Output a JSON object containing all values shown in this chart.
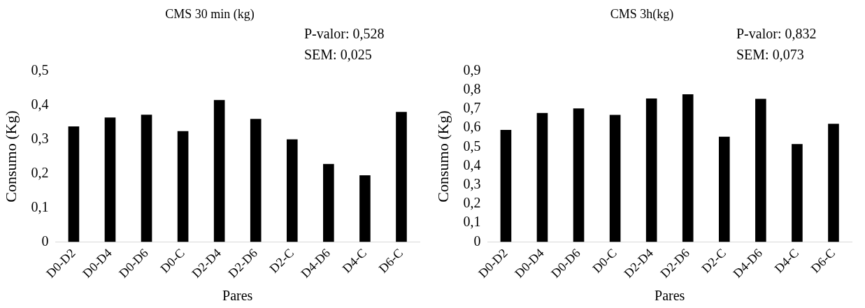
{
  "chart_data": [
    {
      "type": "bar",
      "title": "CMS 30 min (kg)",
      "xlabel": "Pares",
      "ylabel": "Consumo (Kg)",
      "categories": [
        "D0-D2",
        "D0-D4",
        "D0-D6",
        "D0-C",
        "D2-D4",
        "D2-D6",
        "D2-C",
        "D4-D6",
        "D4-C",
        "D6-C"
      ],
      "values": [
        0.338,
        0.364,
        0.372,
        0.324,
        0.415,
        0.36,
        0.3,
        0.228,
        0.195,
        0.38
      ],
      "color": "#000000",
      "ylim": [
        0,
        0.5
      ],
      "yticks": [
        {
          "value": 0,
          "label": "0"
        },
        {
          "value": 0.1,
          "label": "0,1"
        },
        {
          "value": 0.2,
          "label": "0,2"
        },
        {
          "value": 0.3,
          "label": "0,3"
        },
        {
          "value": 0.4,
          "label": "0,4"
        },
        {
          "value": 0.5,
          "label": "0,5"
        }
      ],
      "grid": false,
      "legend": false,
      "annotations": [
        "P-valor: 0,528",
        "SEM: 0,025"
      ]
    },
    {
      "type": "bar",
      "title": "CMS 3h(kg)",
      "xlabel": "Pares",
      "ylabel": "Consumo (Kg)",
      "categories": [
        "D0-D2",
        "D0-D4",
        "D0-D6",
        "D0-C",
        "D2-D4",
        "D2-D6",
        "D2-C",
        "D4-D6",
        "D4-C",
        "D6-C"
      ],
      "values": [
        0.59,
        0.679,
        0.703,
        0.669,
        0.755,
        0.777,
        0.554,
        0.753,
        0.515,
        0.622
      ],
      "color": "#000000",
      "ylim": [
        0,
        0.9
      ],
      "yticks": [
        {
          "value": 0,
          "label": "0"
        },
        {
          "value": 0.1,
          "label": "0,1"
        },
        {
          "value": 0.2,
          "label": "0,2"
        },
        {
          "value": 0.3,
          "label": "0,3"
        },
        {
          "value": 0.4,
          "label": "0,4"
        },
        {
          "value": 0.5,
          "label": "0,5"
        },
        {
          "value": 0.6,
          "label": "0,6"
        },
        {
          "value": 0.7,
          "label": "0,7"
        },
        {
          "value": 0.8,
          "label": "0,8"
        },
        {
          "value": 0.9,
          "label": "0,9"
        }
      ],
      "grid": false,
      "legend": false,
      "annotations": [
        "P-valor: 0,832",
        "SEM: 0,073"
      ]
    }
  ]
}
